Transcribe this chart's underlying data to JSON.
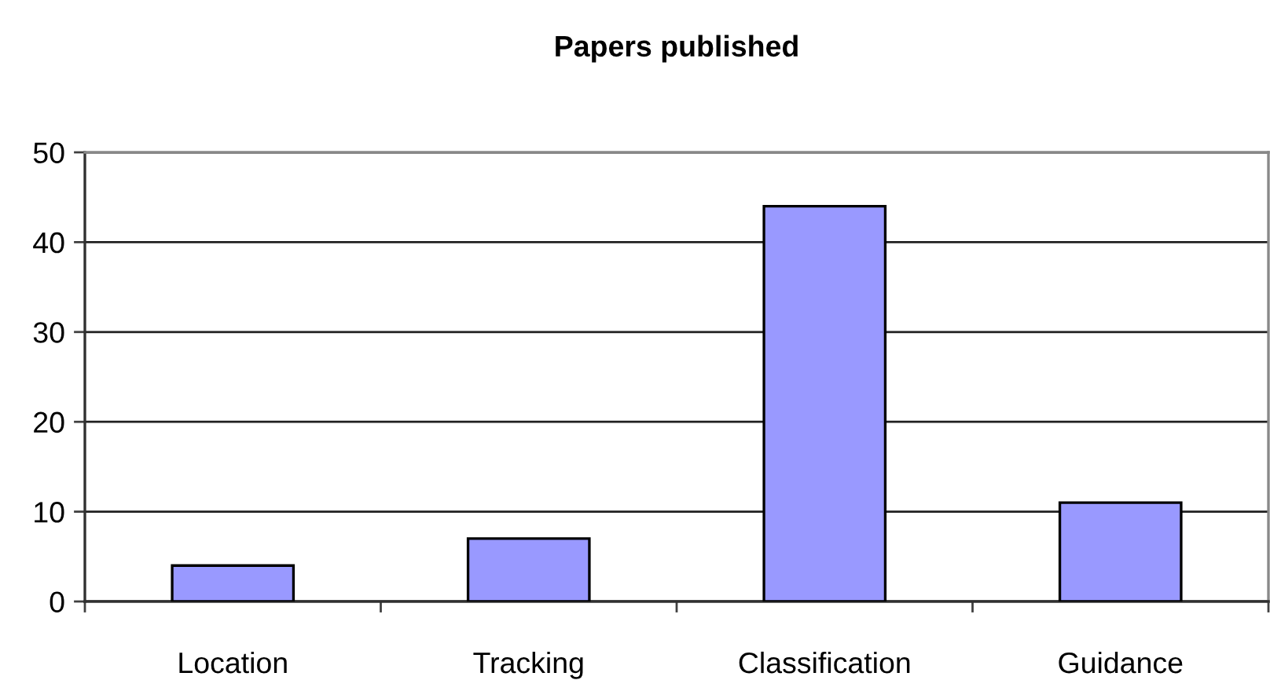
{
  "chart_data": {
    "type": "bar",
    "title": "Papers published",
    "categories": [
      "Location",
      "Tracking",
      "Classification",
      "Guidance"
    ],
    "values": [
      4,
      7,
      44,
      11
    ],
    "color": "#9999ff",
    "ylim": [
      0,
      50
    ],
    "yticks": [
      0,
      10,
      20,
      30,
      40,
      50
    ],
    "grid": "y",
    "legend": false
  }
}
